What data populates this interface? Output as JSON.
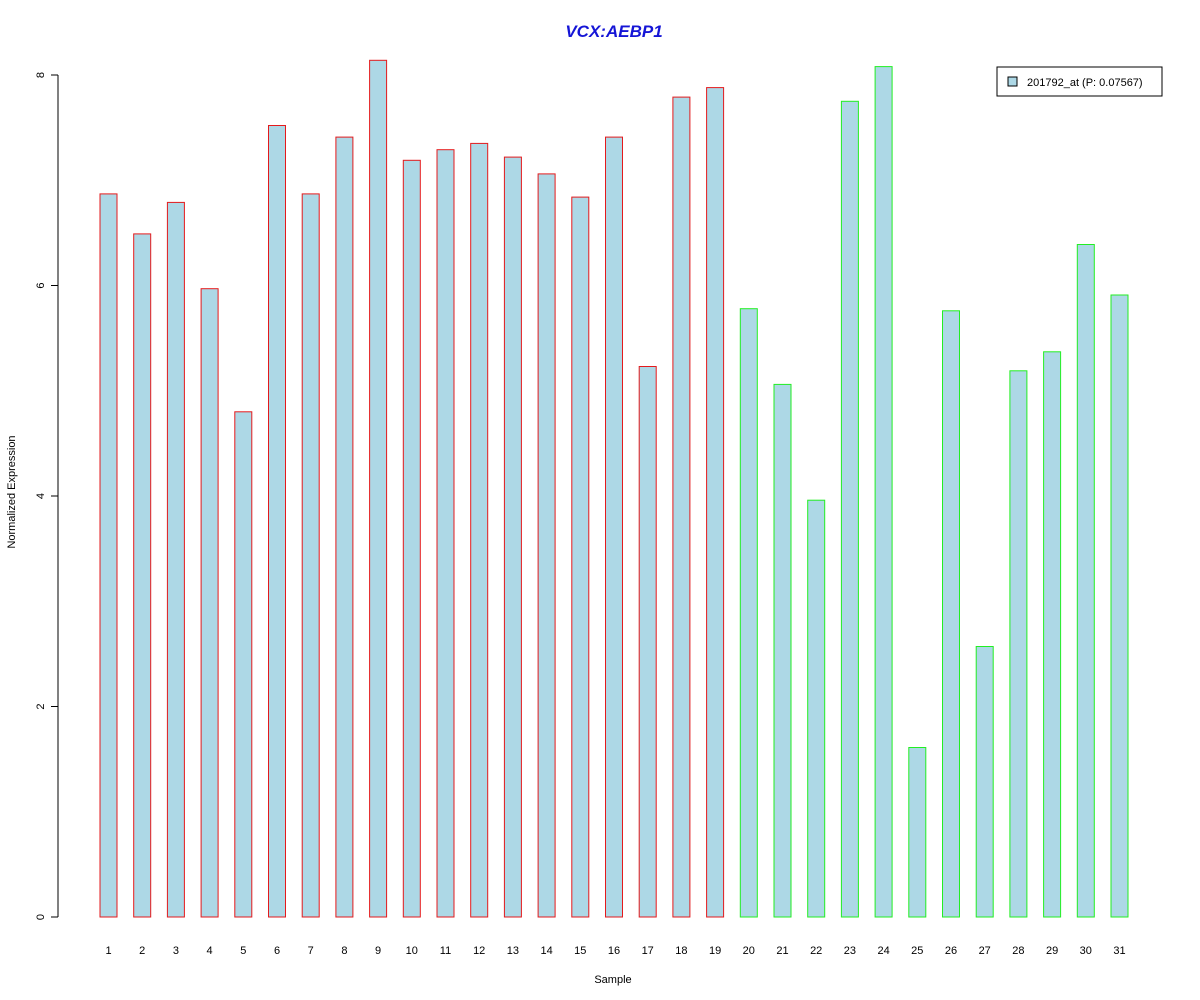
{
  "chart_data": {
    "type": "bar",
    "title": "VCX:AEBP1",
    "xlabel": "Sample",
    "ylabel": "Normalized Expression",
    "ylim": [
      0,
      8
    ],
    "yticks": [
      "0",
      "2",
      "4",
      "6",
      "8"
    ],
    "grid": false,
    "legend_position": "top-right",
    "categories": [
      "1",
      "2",
      "3",
      "4",
      "5",
      "6",
      "7",
      "8",
      "9",
      "10",
      "11",
      "12",
      "13",
      "14",
      "15",
      "16",
      "17",
      "18",
      "19",
      "20",
      "21",
      "22",
      "23",
      "24",
      "25",
      "26",
      "27",
      "28",
      "29",
      "30",
      "31"
    ],
    "series": [
      {
        "name": "201792_at (P: 0.07567)",
        "values": [
          6.87,
          6.49,
          6.79,
          5.97,
          4.8,
          7.52,
          6.87,
          7.41,
          8.14,
          7.19,
          7.29,
          7.35,
          7.22,
          7.06,
          6.84,
          7.41,
          5.23,
          7.79,
          7.88,
          5.78,
          5.06,
          3.96,
          7.75,
          8.08,
          1.61,
          5.76,
          2.57,
          5.19,
          5.37,
          6.39,
          5.91
        ]
      }
    ],
    "group_border_colors": [
      "#e41a1c",
      "#e41a1c",
      "#e41a1c",
      "#e41a1c",
      "#e41a1c",
      "#e41a1c",
      "#e41a1c",
      "#e41a1c",
      "#e41a1c",
      "#e41a1c",
      "#e41a1c",
      "#e41a1c",
      "#e41a1c",
      "#e41a1c",
      "#e41a1c",
      "#e41a1c",
      "#e41a1c",
      "#e41a1c",
      "#e41a1c",
      "#22ee22",
      "#22ee22",
      "#22ee22",
      "#22ee22",
      "#22ee22",
      "#22ee22",
      "#22ee22",
      "#22ee22",
      "#22ee22",
      "#22ee22",
      "#22ee22",
      "#22ee22"
    ],
    "bar_fill": "#add8e6",
    "title_color": "#1515d6"
  }
}
